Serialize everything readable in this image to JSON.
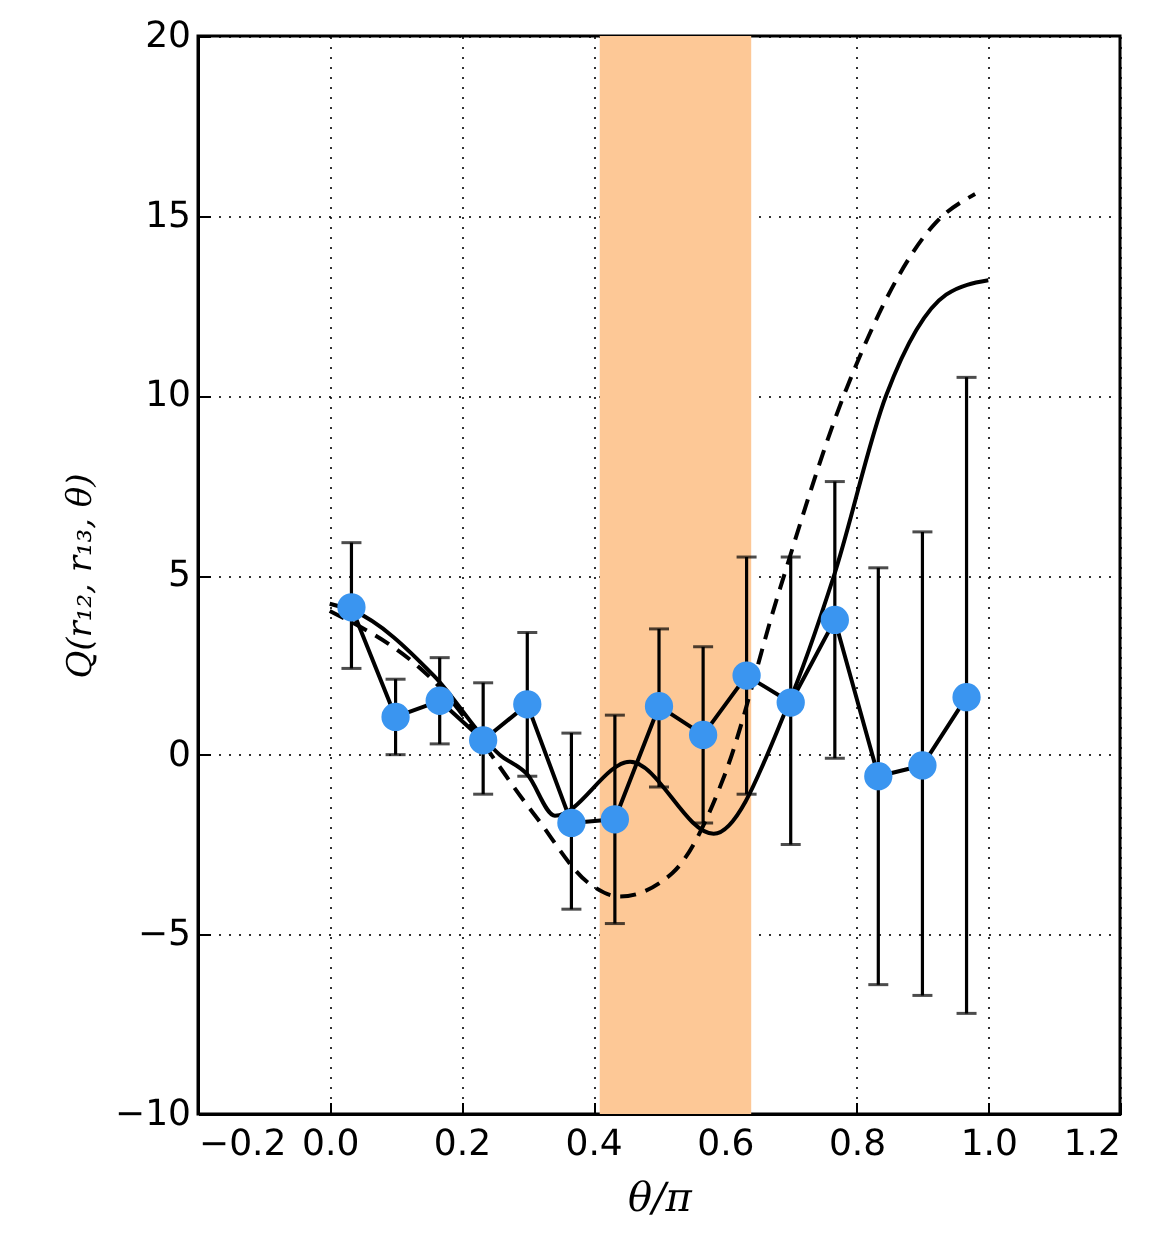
{
  "chart_data": {
    "type": "line",
    "xlabel": "θ/π",
    "ylabel": "Q(r₁₂, r₁₃, θ)",
    "xlim": [
      -0.2,
      1.2
    ],
    "ylim": [
      -10,
      20
    ],
    "xticks": [
      {
        "value": -0.2,
        "label": "−0.2"
      },
      {
        "value": 0,
        "label": "0.0"
      },
      {
        "value": 0.2,
        "label": "0.2"
      },
      {
        "value": 0.4,
        "label": "0.4"
      },
      {
        "value": 0.6,
        "label": "0.6"
      },
      {
        "value": 0.8,
        "label": "0.8"
      },
      {
        "value": 1,
        "label": "1.0"
      },
      {
        "value": 1.2,
        "label": "1.2"
      }
    ],
    "yticks": [
      {
        "value": -10,
        "label": "−10"
      },
      {
        "value": -5,
        "label": "−5"
      },
      0,
      5,
      10,
      15,
      20
    ],
    "grid": true,
    "bands": [
      {
        "axis": "x",
        "from": 0.41,
        "to": 0.64,
        "color": "#fdc896"
      }
    ],
    "series": [
      {
        "color": "#000000",
        "line_style": "solid",
        "marker": "none",
        "x": [
          0,
          0.036,
          0.158,
          0.258,
          0.3,
          0.342,
          0.456,
          0.583,
          0.694,
          0.766,
          0.845,
          0.936,
          1.0
        ],
        "values": [
          4.2,
          4.0,
          2.2,
          0.0,
          -0.55,
          -1.7,
          -0.2,
          -2.2,
          1.3,
          5.0,
          10.0,
          12.8,
          13.2
        ]
      },
      {
        "color": "#000000",
        "line_style": "dashed",
        "marker": "none",
        "x": [
          0,
          0.158,
          0.31,
          0.395,
          0.44,
          0.52,
          0.6,
          0.68,
          0.785,
          0.92,
          0.98
        ],
        "values": [
          4.0,
          2.05,
          -1.65,
          -3.6,
          -3.95,
          -3.3,
          -0.55,
          4.4,
          10.2,
          14.8,
          15.6
        ]
      },
      {
        "color": "#3a95f0",
        "line_style": "solid",
        "marker": "circle",
        "x": [
          0.033,
          0.1,
          0.167,
          0.233,
          0.3,
          0.367,
          0.433,
          0.5,
          0.567,
          0.633,
          0.7,
          0.767,
          0.833,
          0.9,
          0.967
        ],
        "values": [
          4.1,
          1.05,
          1.5,
          0.4,
          1.4,
          -1.9,
          -1.8,
          1.35,
          0.55,
          2.2,
          1.45,
          3.75,
          -0.6,
          -0.3,
          1.6
        ],
        "errors": [
          [
            2.4,
            5.9
          ],
          [
            0,
            2.1
          ],
          [
            0.3,
            2.7
          ],
          [
            -1.1,
            2.0
          ],
          [
            -0.6,
            3.4
          ],
          [
            -4.3,
            0.6
          ],
          [
            -4.7,
            1.1
          ],
          [
            -0.9,
            3.5
          ],
          [
            -1.9,
            3.0
          ],
          [
            -1.1,
            5.5
          ],
          [
            -2.5,
            5.5
          ],
          [
            -0.1,
            7.6
          ],
          [
            -6.4,
            5.2
          ],
          [
            -6.7,
            6.2
          ],
          [
            -7.2,
            10.5
          ]
        ]
      }
    ]
  }
}
